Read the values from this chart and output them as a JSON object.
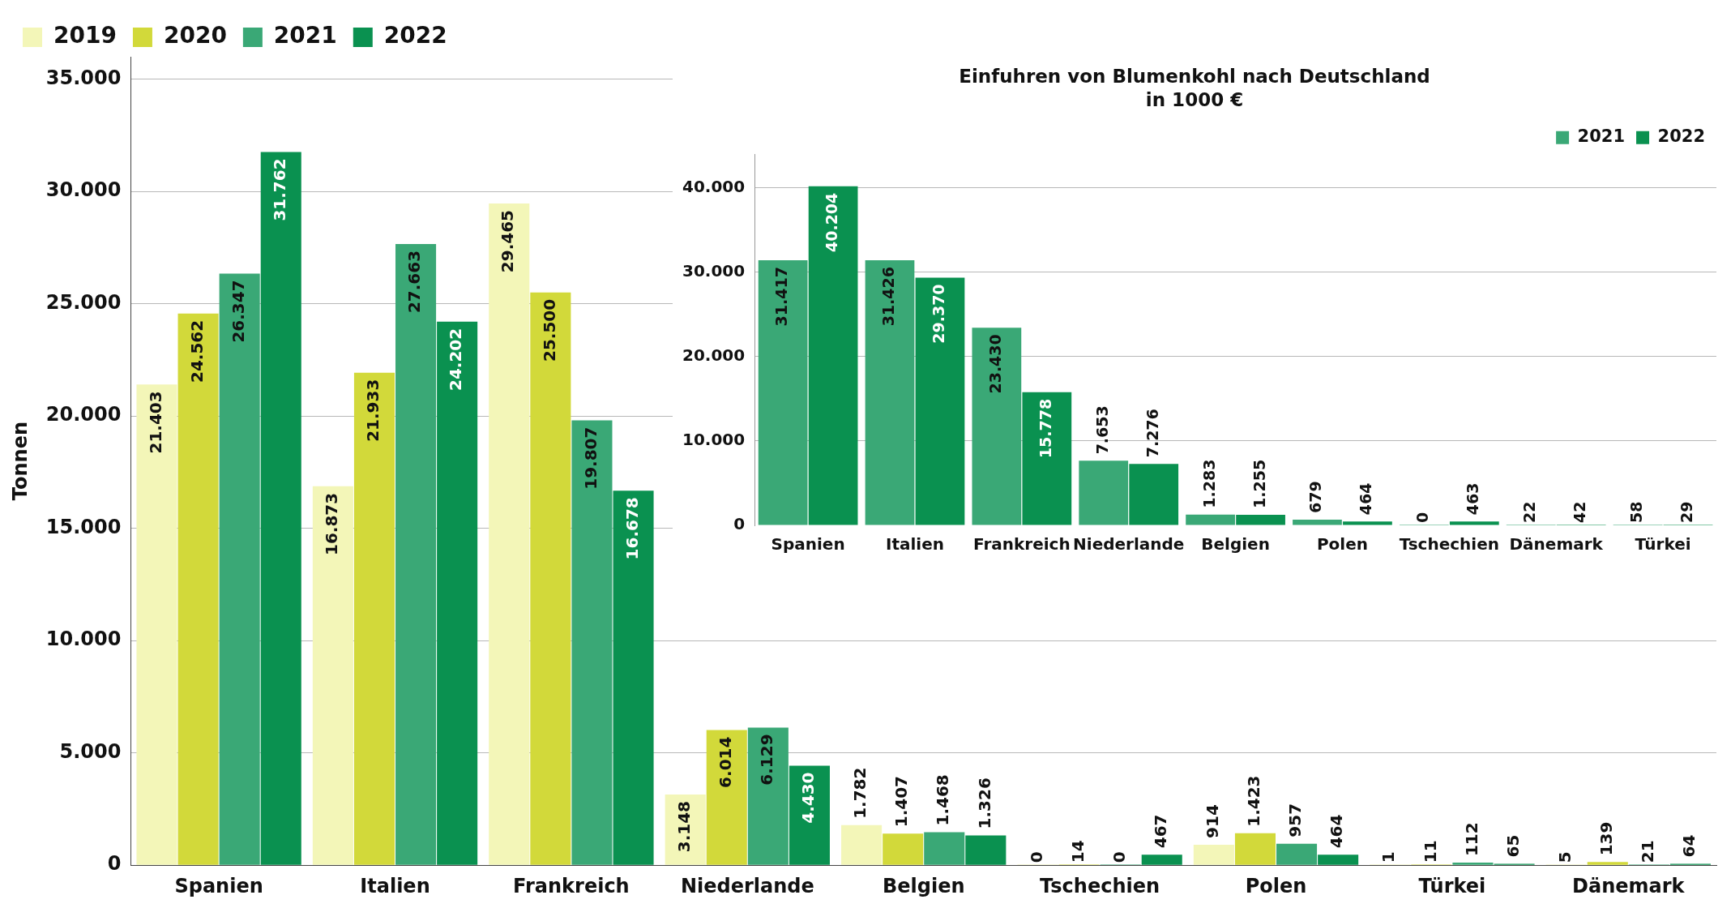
{
  "chart_data": [
    {
      "type": "bar",
      "ylabel": "Tonnen",
      "categories": [
        "Spanien",
        "Italien",
        "Frankreich",
        "Niederlande",
        "Belgien",
        "Tschechien",
        "Polen",
        "Türkei",
        "Dänemark"
      ],
      "series": [
        {
          "name": "2019",
          "color": "#f3f6b8",
          "values": [
            21403,
            16873,
            29465,
            3148,
            1782,
            0,
            914,
            1,
            5
          ],
          "value_labels": [
            "21.403",
            "16.873",
            "29.465",
            "3.148",
            "1.782",
            "0",
            "914",
            "1",
            "5"
          ]
        },
        {
          "name": "2020",
          "color": "#d2d93a",
          "values": [
            24562,
            21933,
            25500,
            6014,
            1407,
            14,
            1423,
            11,
            139
          ],
          "value_labels": [
            "24.562",
            "21.933",
            "25.500",
            "6.014",
            "1.407",
            "14",
            "1.423",
            "11",
            "139"
          ]
        },
        {
          "name": "2021",
          "color": "#3aa876",
          "values": [
            26347,
            27663,
            19807,
            6129,
            1468,
            0,
            957,
            112,
            21
          ],
          "value_labels": [
            "26.347",
            "27.663",
            "19.807",
            "6.129",
            "1.468",
            "0",
            "957",
            "112",
            "21"
          ]
        },
        {
          "name": "2022",
          "color": "#0a9150",
          "values": [
            31762,
            24202,
            16678,
            4430,
            1326,
            467,
            464,
            65,
            64
          ],
          "value_labels": [
            "31.762",
            "24.202",
            "16.678",
            "4.430",
            "1.326",
            "467",
            "464",
            "65",
            "64"
          ]
        }
      ],
      "ylim": [
        0,
        36000
      ],
      "yticks": [
        {
          "value": 0,
          "label": "0"
        },
        {
          "value": 5000,
          "label": "5.000"
        },
        {
          "value": 10000,
          "label": "10.000"
        },
        {
          "value": 15000,
          "label": "15.000"
        },
        {
          "value": 20000,
          "label": "20.000"
        },
        {
          "value": 25000,
          "label": "25.000"
        },
        {
          "value": 30000,
          "label": "30.000"
        },
        {
          "value": 35000,
          "label": "35.000"
        }
      ],
      "grid": "y",
      "legend": "top left"
    },
    {
      "type": "bar",
      "title": "Einfuhren von Blumenkohl nach Deutschland",
      "subtitle": "in 1000 €",
      "categories": [
        "Spanien",
        "Italien",
        "Frankreich",
        "Niederlande",
        "Belgien",
        "Polen",
        "Tschechien",
        "Dänemark",
        "Türkei"
      ],
      "series": [
        {
          "name": "2021",
          "color": "#3aa876",
          "values": [
            31417,
            31426,
            23430,
            7653,
            1283,
            679,
            0,
            22,
            58
          ],
          "value_labels": [
            "31.417",
            "31.426",
            "23.430",
            "7.653",
            "1.283",
            "679",
            "0",
            "22",
            "58"
          ]
        },
        {
          "name": "2022",
          "color": "#0a9150",
          "values": [
            40204,
            29370,
            15778,
            7276,
            1255,
            464,
            463,
            42,
            29
          ],
          "value_labels": [
            "40.204",
            "29.370",
            "15.778",
            "7.276",
            "1.255",
            "464",
            "463",
            "42",
            "29"
          ]
        }
      ],
      "ylim": [
        0,
        44000
      ],
      "yticks": [
        {
          "value": 0,
          "label": "0"
        },
        {
          "value": 10000,
          "label": "10.000"
        },
        {
          "value": 20000,
          "label": "20.000"
        },
        {
          "value": 30000,
          "label": "30.000"
        },
        {
          "value": 40000,
          "label": "40.000"
        }
      ],
      "grid": "y",
      "legend": "top right"
    }
  ]
}
